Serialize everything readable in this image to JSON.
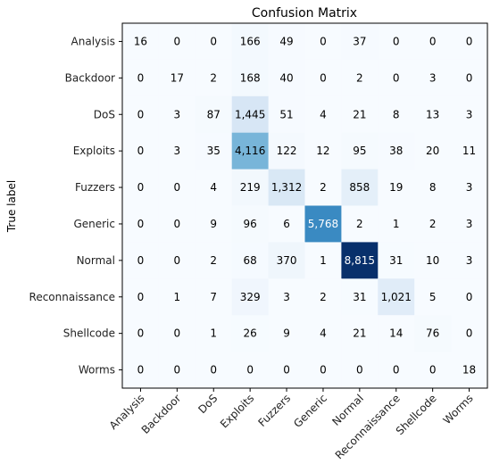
{
  "chart_data": {
    "type": "heatmap",
    "title": "Confusion Matrix",
    "ylabel": "True label",
    "xlabel": "",
    "x_categories": [
      "Analysis",
      "Backdoor",
      "DoS",
      "Exploits",
      "Fuzzers",
      "Generic",
      "Normal",
      "Reconnaissance",
      "Shellcode",
      "Worms"
    ],
    "y_categories": [
      "Analysis",
      "Backdoor",
      "DoS",
      "Exploits",
      "Fuzzers",
      "Generic",
      "Normal",
      "Reconnaissance",
      "Shellcode",
      "Worms"
    ],
    "values": [
      [
        16,
        0,
        0,
        166,
        49,
        0,
        37,
        0,
        0,
        0
      ],
      [
        0,
        17,
        2,
        168,
        40,
        0,
        2,
        0,
        3,
        0
      ],
      [
        0,
        3,
        87,
        1445,
        51,
        4,
        21,
        8,
        13,
        3
      ],
      [
        0,
        3,
        35,
        4116,
        122,
        12,
        95,
        38,
        20,
        11
      ],
      [
        0,
        0,
        4,
        219,
        1312,
        2,
        858,
        19,
        8,
        3
      ],
      [
        0,
        0,
        9,
        96,
        6,
        5768,
        2,
        1,
        2,
        3
      ],
      [
        0,
        0,
        2,
        68,
        370,
        1,
        8815,
        31,
        10,
        3
      ],
      [
        0,
        1,
        7,
        329,
        3,
        2,
        31,
        1021,
        5,
        0
      ],
      [
        0,
        0,
        1,
        26,
        9,
        4,
        21,
        14,
        76,
        0
      ],
      [
        0,
        0,
        0,
        0,
        0,
        0,
        0,
        0,
        0,
        18
      ]
    ],
    "colormap": "Blues",
    "color_low": "#f7fbff",
    "color_high": "#08306b",
    "grid": false,
    "legend": "none"
  }
}
